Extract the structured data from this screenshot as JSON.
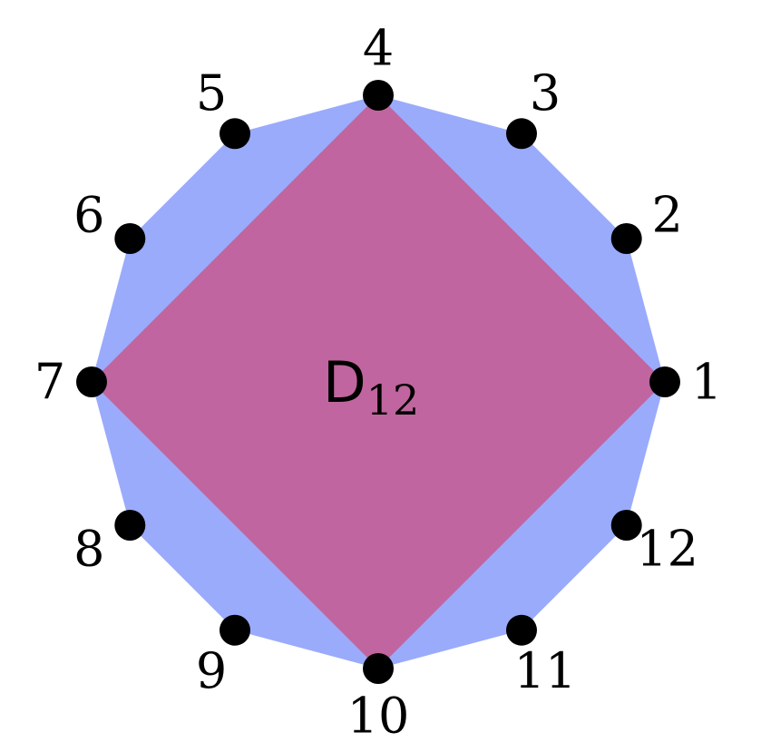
{
  "diagram": {
    "title_main": "D",
    "title_subscript": "12",
    "vertex_count": 12,
    "vertex_labels": [
      "1",
      "2",
      "3",
      "4",
      "5",
      "6",
      "7",
      "8",
      "9",
      "10",
      "11",
      "12"
    ],
    "inscribed_square_vertices": [
      "1",
      "4",
      "7",
      "10"
    ],
    "colors": {
      "dodecagon_fill": "#9aabfc",
      "square_fill": "#c0659f",
      "vertex_dot": "#000000",
      "text": "#000000",
      "background": "#ffffff"
    }
  }
}
